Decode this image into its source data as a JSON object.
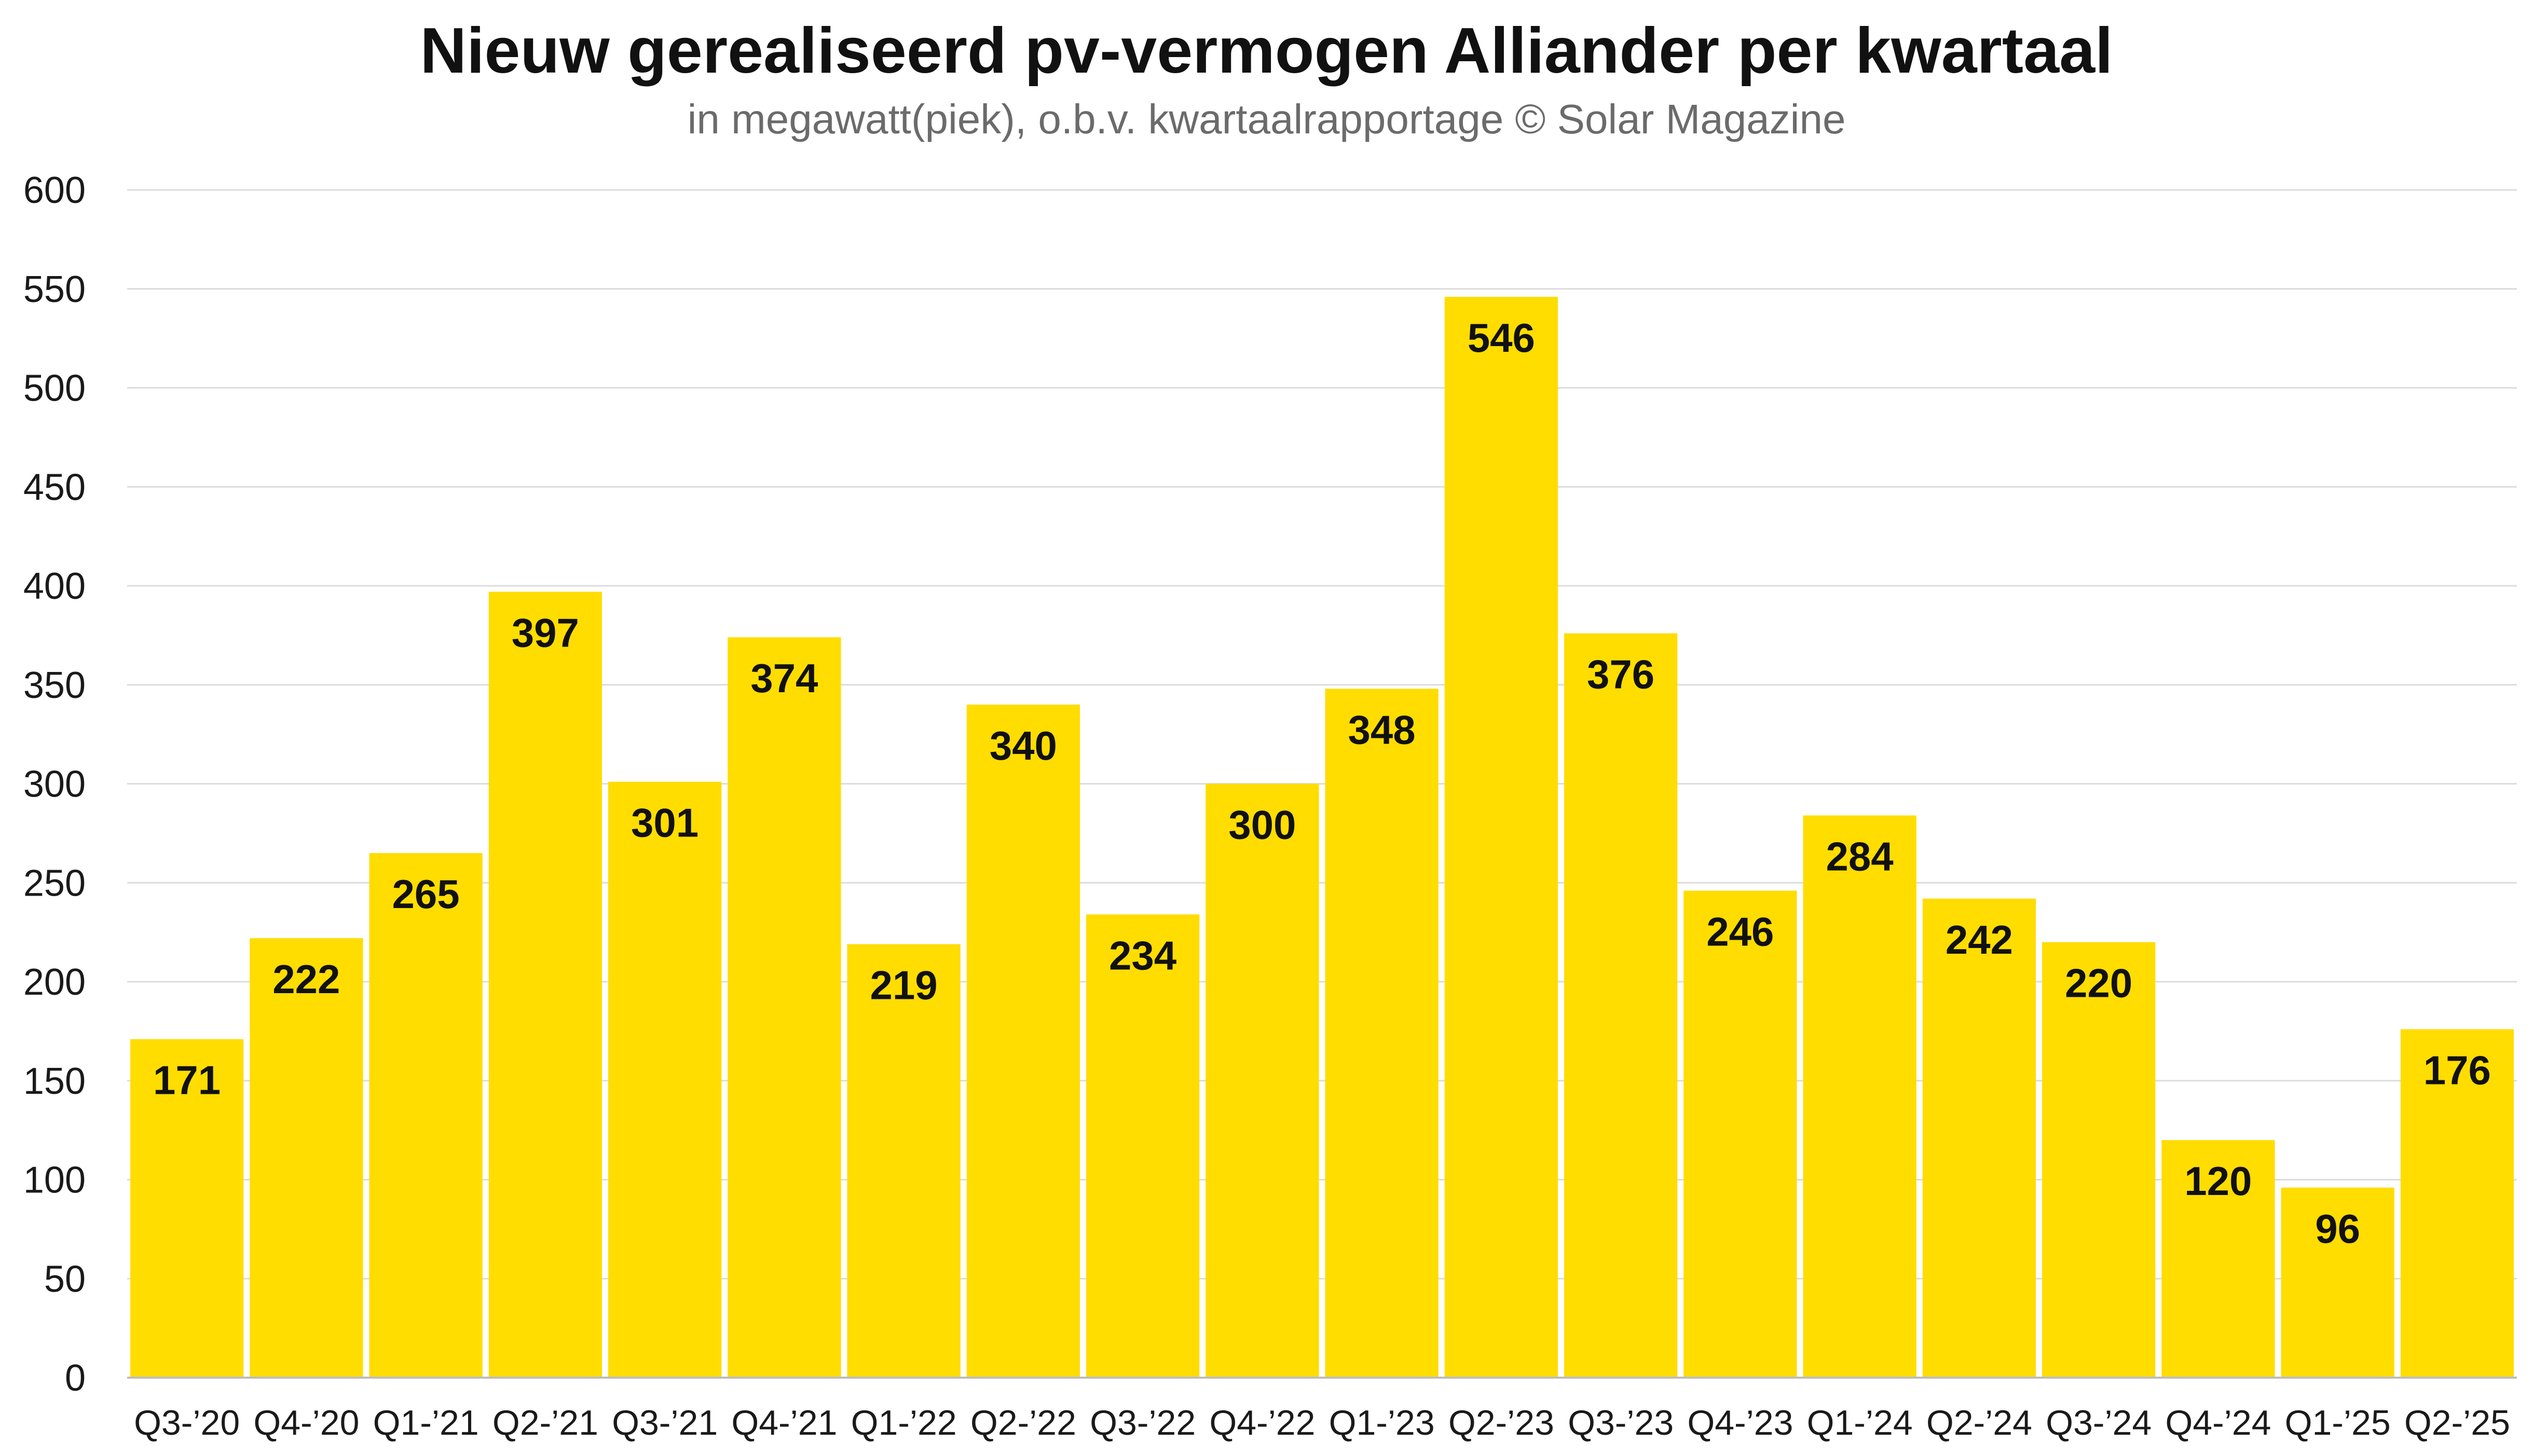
{
  "chart_data": {
    "type": "bar",
    "title": "Nieuw gerealiseerd pv-vermogen Alliander per kwartaal",
    "subtitle": "in megawatt(piek), o.b.v. kwartaalrapportage  © Solar Magazine",
    "xlabel": "",
    "ylabel": "",
    "ylim": [
      0,
      600
    ],
    "y_ticks": [
      0,
      50,
      100,
      150,
      200,
      250,
      300,
      350,
      400,
      450,
      500,
      550,
      600
    ],
    "grid": true,
    "legend": "none",
    "bar_color": "#FFDD00",
    "categories": [
      "Q3-’20",
      "Q4-’20",
      "Q1-’21",
      "Q2-’21",
      "Q3-’21",
      "Q4-’21",
      "Q1-’22",
      "Q2-’22",
      "Q3-’22",
      "Q4-’22",
      "Q1-’23",
      "Q2-’23",
      "Q3-’23",
      "Q4-’23",
      "Q1-’24",
      "Q2-’24",
      "Q3-’24",
      "Q4-’24",
      "Q1-’25",
      "Q2-’25"
    ],
    "values": [
      171,
      222,
      265,
      397,
      301,
      374,
      219,
      340,
      234,
      300,
      348,
      546,
      376,
      246,
      284,
      242,
      220,
      120,
      96,
      176
    ]
  }
}
